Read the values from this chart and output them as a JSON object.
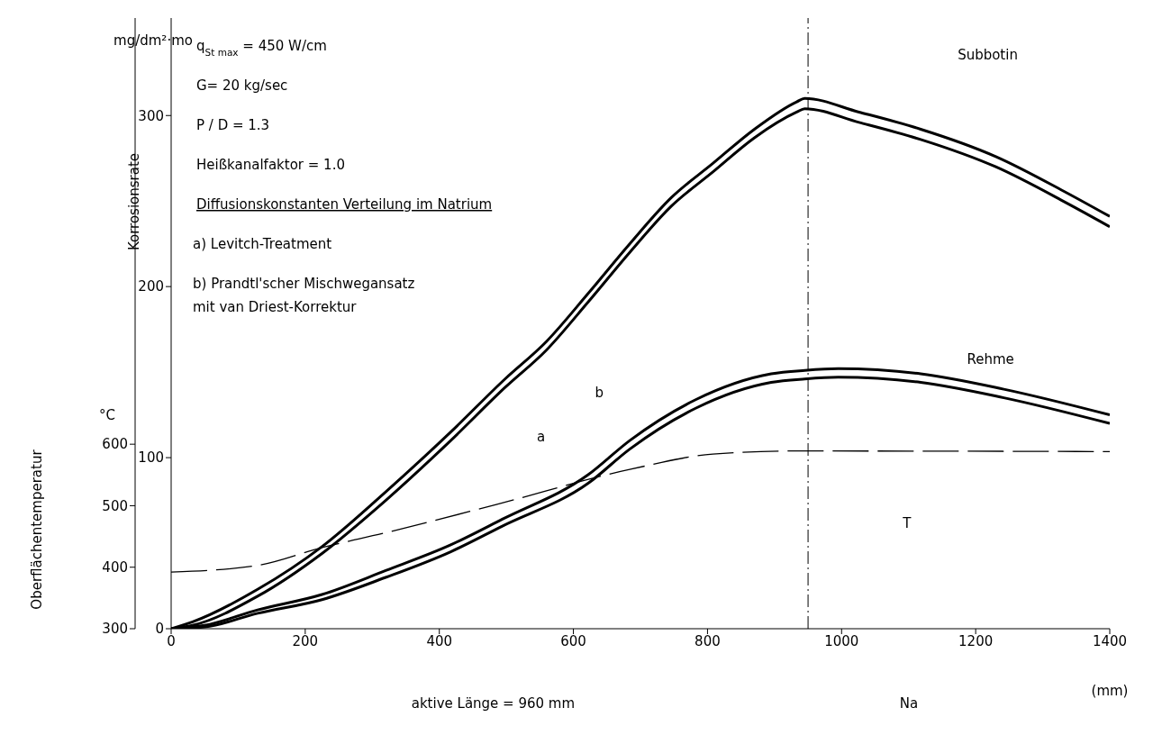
{
  "chart_data": {
    "type": "line",
    "xlabel": "(mm)",
    "ylabel": "Korrosionsrate",
    "y2label": "Oberflächentemperatur",
    "xlim": [
      0,
      1400
    ],
    "xticks": [
      0,
      200,
      400,
      600,
      800,
      1000,
      1200,
      1400
    ],
    "ylim": [
      0,
      357
    ],
    "yticks": [
      0,
      100,
      200,
      300
    ],
    "y2lim": [
      300,
      1293
    ],
    "y2ticks": [
      300,
      400,
      500,
      600
    ],
    "marker": "none",
    "ref_lines": [
      {
        "axis": "x",
        "value": 950,
        "label": null,
        "line_style": "dashed",
        "color": "#000000"
      }
    ],
    "series": [
      {
        "color": "#000000",
        "line_style": "solid",
        "x": [
          0,
          32,
          129,
          225,
          320,
          417,
          498,
          560,
          622,
          684,
          746,
          808,
          870,
          933,
          945,
          1026,
          1118,
          1230,
          1335,
          1400
        ],
        "values": [
          0,
          4,
          23,
          48,
          80,
          115,
          146,
          168,
          196,
          225,
          252,
          272,
          292,
          308,
          310,
          302,
          292,
          276,
          255,
          241
        ]
      },
      {
        "color": "#000000",
        "line_style": "solid",
        "x": [
          0,
          32,
          129,
          225,
          320,
          417,
          498,
          560,
          622,
          684,
          746,
          808,
          870,
          933,
          945,
          1026,
          1118,
          1230,
          1335,
          1400
        ],
        "values": [
          0,
          2,
          19,
          44,
          75,
          110,
          141,
          163,
          191,
          220,
          247,
          267,
          287,
          302,
          304,
          296,
          286,
          270,
          249,
          235
        ]
      },
      {
        "color": "#000000",
        "line_style": "solid",
        "x": [
          0,
          50,
          129,
          225,
          320,
          417,
          494,
          622,
          684,
          783,
          895,
          945,
          995,
          1118,
          1242,
          1400
        ],
        "values": [
          0,
          2,
          11,
          20,
          34,
          49,
          64,
          90,
          110,
          134,
          149,
          151,
          152,
          149,
          140,
          125
        ]
      },
      {
        "color": "#000000",
        "line_style": "solid",
        "x": [
          0,
          50,
          129,
          225,
          320,
          417,
          494,
          622,
          684,
          783,
          895,
          945,
          995,
          1118,
          1242,
          1400
        ],
        "values": [
          0,
          1,
          9,
          17,
          30,
          45,
          60,
          85,
          105,
          129,
          144,
          146,
          147,
          144,
          135,
          120
        ]
      },
      {
        "color": "#000000",
        "line_style": "dashed",
        "axis": "y2",
        "x": [
          0,
          129,
          225,
          320,
          485,
          684,
          808,
          933,
          1400
        ],
        "values": [
          392,
          403,
          432,
          456,
          502,
          559,
          584,
          589,
          588
        ]
      }
    ],
    "annotations": [
      "mg/dm²·mo",
      "°C",
      "q$_{St max}$= 450 W/cm",
      "G= 20 kg/sec",
      "P / D = 1.3",
      "Heißkanalfaktor = 1.0",
      "Diffusionskonstanten Verteilung im Natrium",
      "a) Levitch-Treatment",
      "b) Prandtl'scher Mischwegansatz",
      "mit van Driest-Korrektur",
      "Subbotin",
      "Rehme",
      "b",
      "a",
      "T",
      "aktive Länge = 960 mm",
      "Na"
    ]
  }
}
